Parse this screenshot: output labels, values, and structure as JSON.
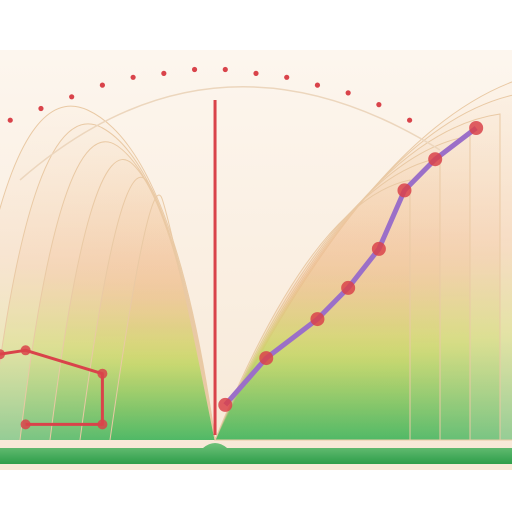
{
  "chart_data": {
    "type": "line",
    "title": "",
    "xlabel": "",
    "ylabel": "",
    "grid": false,
    "legend": "none",
    "x_tick_labels": [
      "",
      "",
      "",
      ""
    ],
    "xlim": [
      0,
      100
    ],
    "ylim": [
      0,
      100
    ],
    "series": [
      {
        "color": "#9b6fc8",
        "marker_color": "#d9434a",
        "x": [
          44,
          52,
          62,
          68,
          74,
          79,
          85,
          93
        ],
        "y": [
          9,
          21,
          31,
          39,
          49,
          64,
          72,
          80
        ]
      },
      {
        "color": "#d9434a",
        "marker_color": "#d9434a",
        "x": [
          0,
          5,
          20,
          20,
          5
        ],
        "y": [
          22,
          23,
          17,
          4,
          4
        ]
      },
      {
        "color": "#d9434a",
        "style": "dotted",
        "x": [
          2,
          8,
          14,
          20,
          26,
          32,
          38,
          44,
          50,
          56,
          62,
          68,
          74,
          80
        ],
        "y": [
          82,
          85,
          88,
          91,
          93,
          94,
          95,
          95,
          94,
          93,
          91,
          89,
          86,
          82
        ]
      }
    ],
    "reference_line": {
      "x": 42,
      "color": "#d9434a"
    },
    "colors": {
      "title": "#3aaa55",
      "fan_green": "#3db35a",
      "fan_yellow": "#c8d65a",
      "fan_orange": "#f0b98a",
      "background": "#fbf1e6"
    }
  }
}
